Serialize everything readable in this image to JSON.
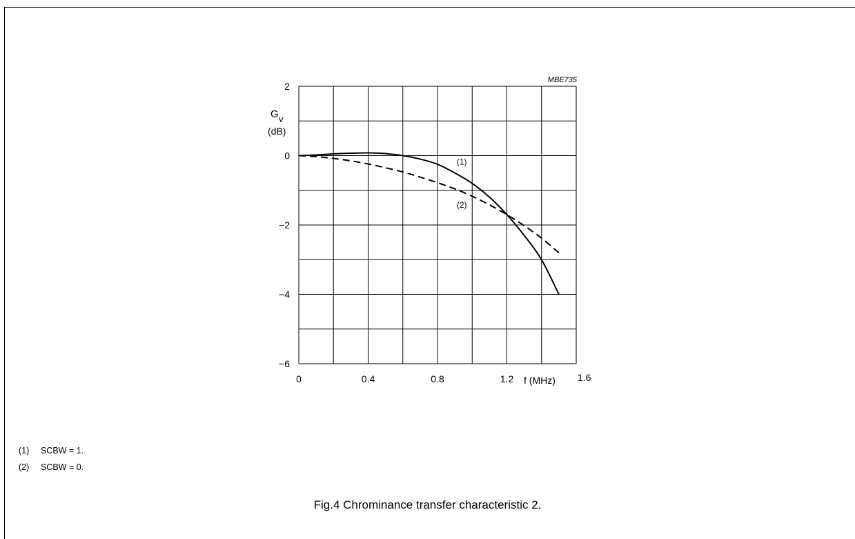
{
  "chart_data": {
    "type": "line",
    "code_label": "MBE735",
    "ylabel_main": "G",
    "ylabel_sub": "v",
    "ylabel_unit": "(dB)",
    "xlabel": "f (MHz)",
    "xlim": [
      0,
      1.6
    ],
    "ylim": [
      -6,
      2
    ],
    "grid": true,
    "x_ticks": [
      {
        "value": 0,
        "label": "0"
      },
      {
        "value": 0.4,
        "label": "0.4"
      },
      {
        "value": 0.8,
        "label": "0.8"
      },
      {
        "value": 1.2,
        "label": "1.2"
      },
      {
        "value": 1.6,
        "label": "1.6"
      }
    ],
    "y_ticks": [
      {
        "value": 2,
        "label": "2"
      },
      {
        "value": 0,
        "label": "0"
      },
      {
        "value": -2,
        "label": "−2"
      },
      {
        "value": -4,
        "label": "−4"
      },
      {
        "value": -6,
        "label": "−6"
      }
    ],
    "series": [
      {
        "name": "(1)",
        "style": "solid",
        "label_at": [
          0.94,
          -0.26
        ],
        "x": [
          0,
          0.1,
          0.2,
          0.3,
          0.4,
          0.5,
          0.6,
          0.7,
          0.8,
          0.9,
          1.0,
          1.1,
          1.2,
          1.3,
          1.4,
          1.5
        ],
        "y": [
          0,
          0.02,
          0.05,
          0.07,
          0.08,
          0.06,
          0.0,
          -0.1,
          -0.25,
          -0.5,
          -0.8,
          -1.2,
          -1.7,
          -2.3,
          -3.0,
          -4.0
        ]
      },
      {
        "name": "(2)",
        "style": "dashed",
        "label_at": [
          0.94,
          -1.5
        ],
        "x": [
          0,
          0.1,
          0.2,
          0.3,
          0.4,
          0.5,
          0.6,
          0.7,
          0.8,
          0.9,
          1.0,
          1.1,
          1.2,
          1.3,
          1.4,
          1.5
        ],
        "y": [
          0,
          -0.03,
          -0.08,
          -0.15,
          -0.24,
          -0.35,
          -0.47,
          -0.62,
          -0.78,
          -0.96,
          -1.17,
          -1.42,
          -1.7,
          -2.02,
          -2.38,
          -2.8
        ]
      }
    ]
  },
  "notes": [
    {
      "num": "(1)",
      "text": "SCBW = 1."
    },
    {
      "num": "(2)",
      "text": "SCBW = 0."
    }
  ],
  "caption": "Fig.4  Chrominance transfer characteristic 2."
}
